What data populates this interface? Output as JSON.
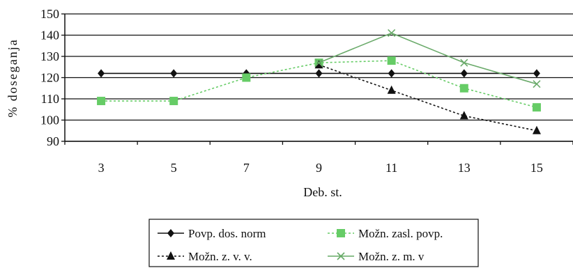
{
  "chart_data": {
    "type": "line",
    "x": [
      3,
      5,
      7,
      9,
      11,
      13,
      15
    ],
    "categories": [
      "3",
      "5",
      "7",
      "9",
      "11",
      "13",
      "15"
    ],
    "xlabel": "Deb. st.",
    "ylabel": "% doseganja",
    "ylim": [
      90,
      150
    ],
    "yticks": [
      90,
      100,
      110,
      120,
      130,
      140,
      150
    ],
    "grid": "horizontal",
    "legend_position": "bottom",
    "series": [
      {
        "name": "Povp. dos. norm",
        "values": [
          122,
          122,
          122,
          122,
          122,
          122,
          122
        ],
        "color": "#111111",
        "line": "solid",
        "marker": "diamond"
      },
      {
        "name": "Možn. zasl. povp.",
        "values": [
          109,
          109,
          120,
          127,
          128,
          115,
          106
        ],
        "color": "#66cc66",
        "line": "dotted",
        "marker": "square"
      },
      {
        "name": "Možn. z. v. v.",
        "values": [
          null,
          null,
          null,
          126,
          114,
          102,
          95
        ],
        "color": "#111111",
        "line": "dotted",
        "marker": "triangle"
      },
      {
        "name": "Možn. z. m. v",
        "values": [
          null,
          null,
          null,
          127,
          141,
          127,
          117
        ],
        "color": "#6aaa6a",
        "line": "solid",
        "marker": "x"
      }
    ],
    "legend_order": [
      0,
      1,
      2,
      3
    ],
    "legend_style_overrides": {
      "1": {
        "line": "dotted",
        "color": "#66cc66"
      },
      "3": {
        "line": "solid",
        "color": "#66aa66"
      }
    }
  }
}
